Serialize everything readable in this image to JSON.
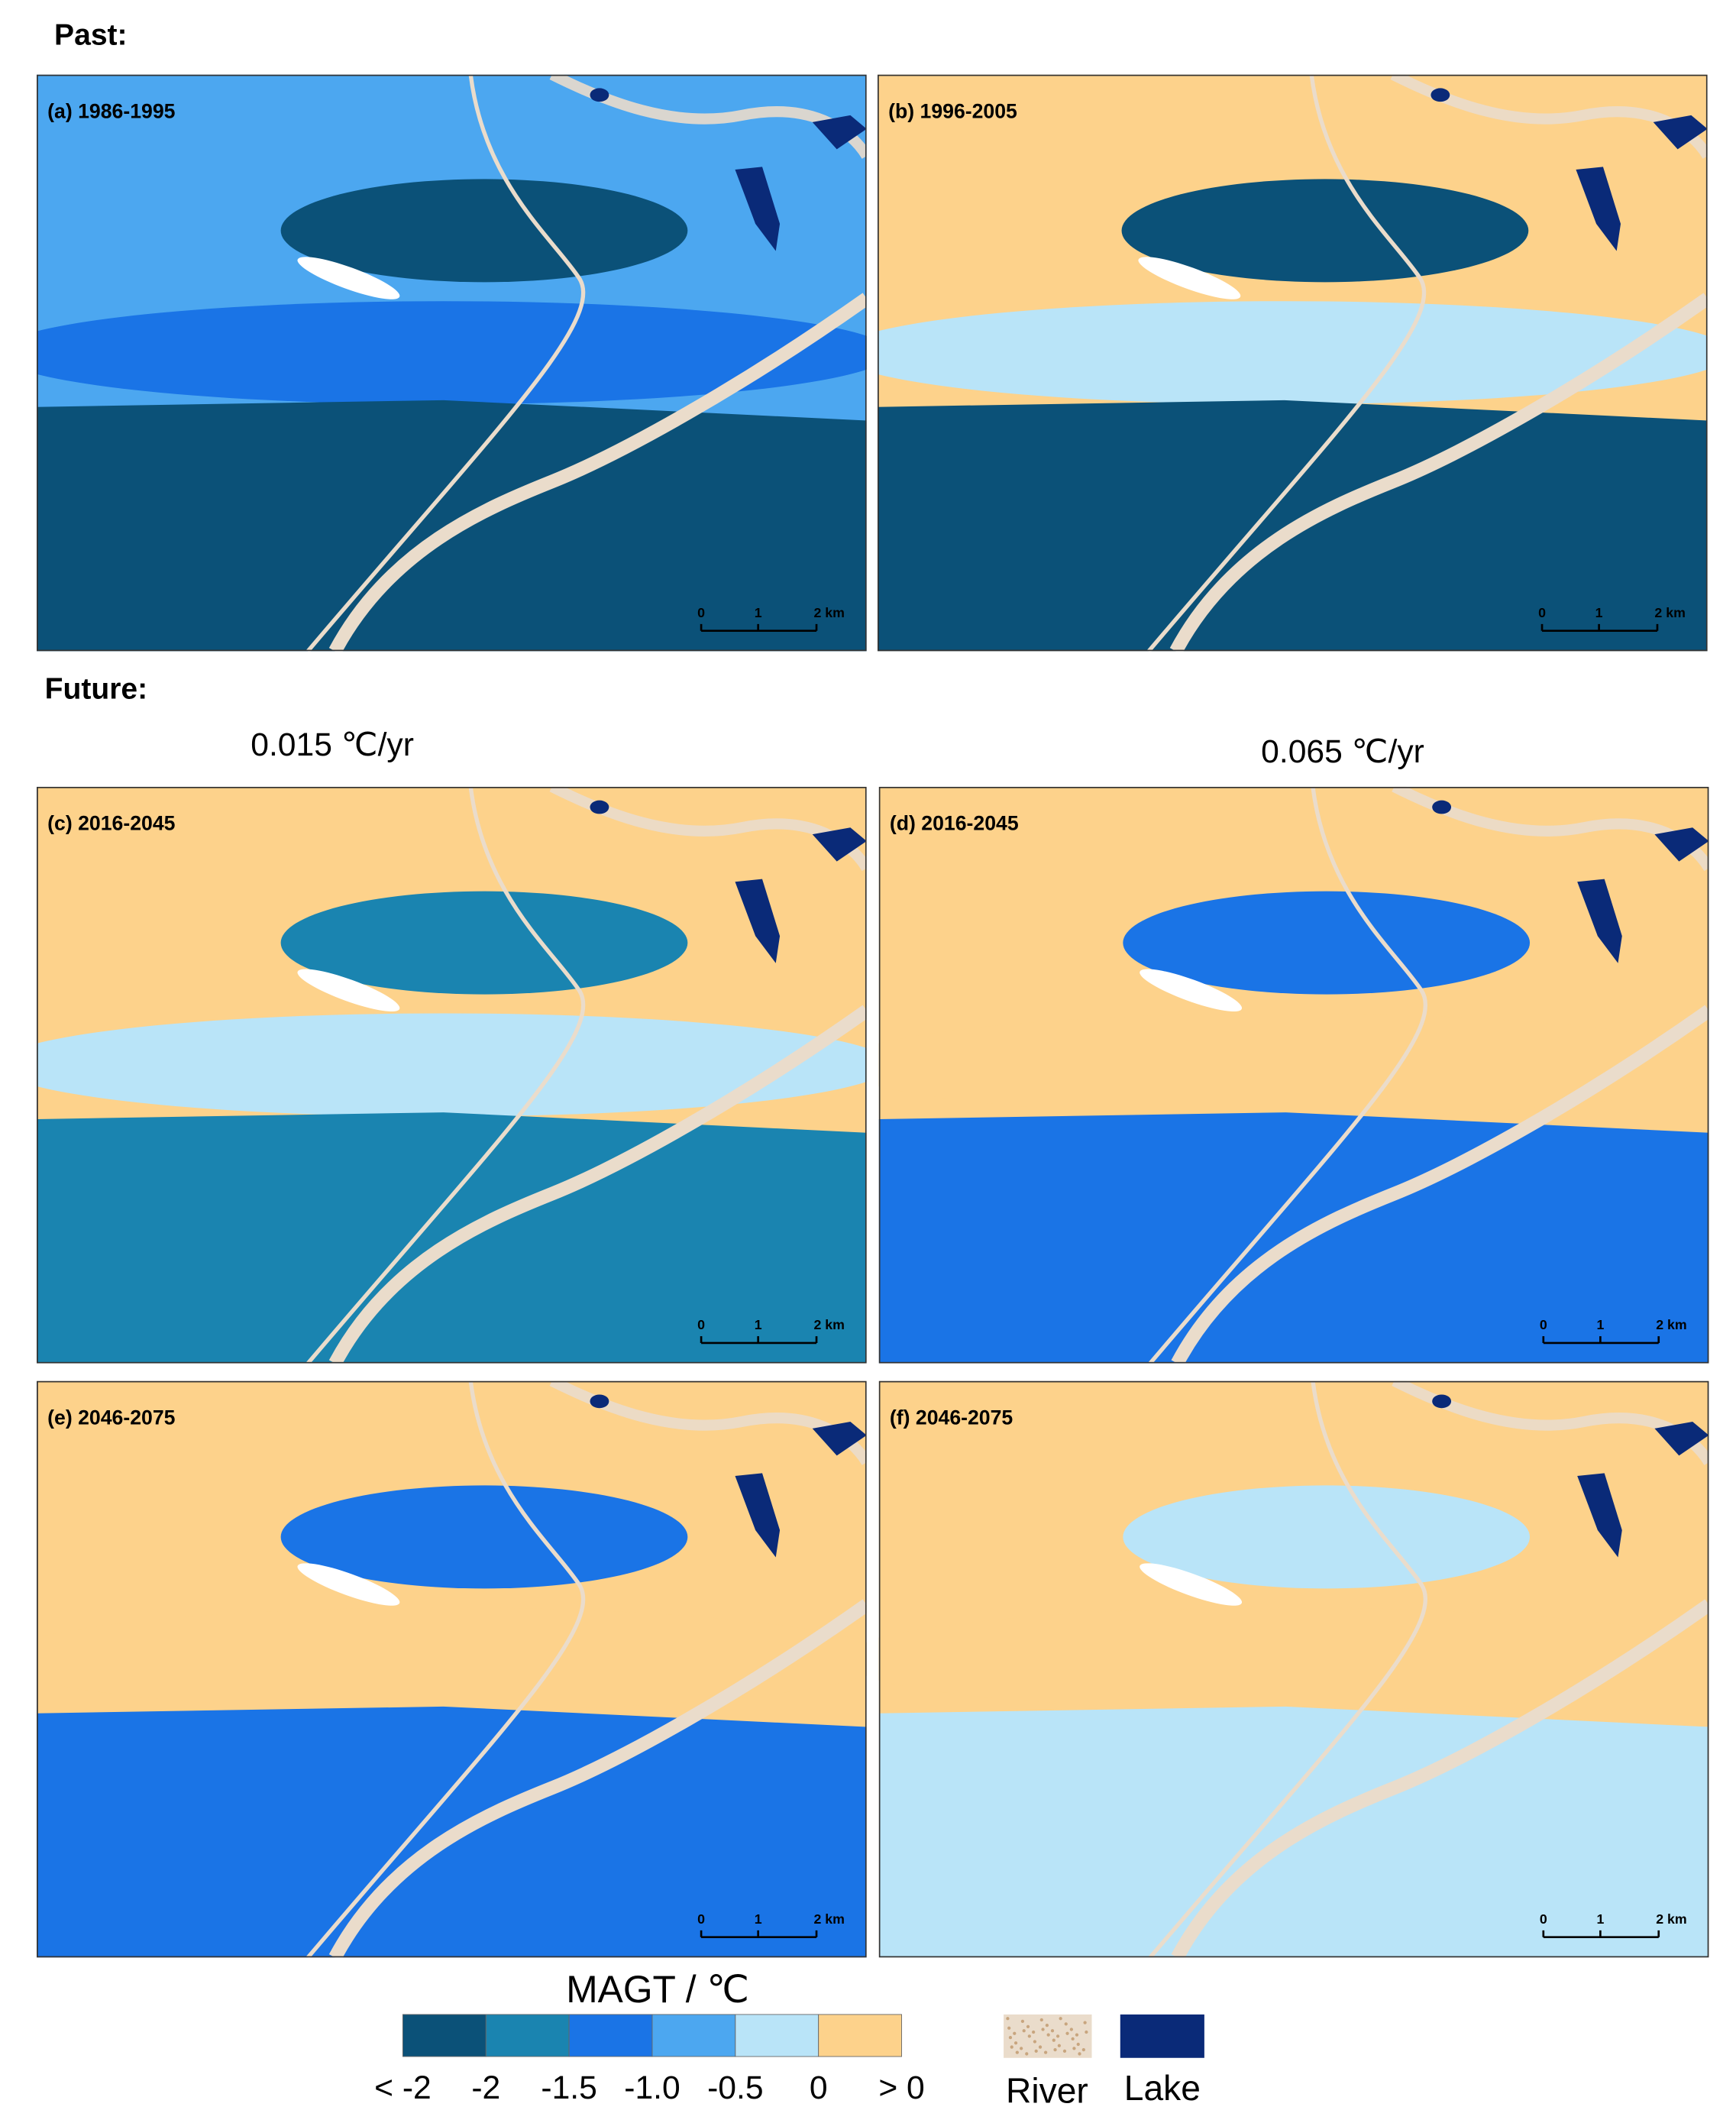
{
  "header": {
    "past": "Past:",
    "future": "Future:"
  },
  "scenarios": [
    "0.015 ℃/yr",
    "0.065 ℃/yr"
  ],
  "panels": [
    {
      "label": "(a) 1986-1995"
    },
    {
      "label": "(b) 1996-2005"
    },
    {
      "label": "(c) 2016-2045"
    },
    {
      "label": "(d) 2016-2045"
    },
    {
      "label": "(e) 2046-2075"
    },
    {
      "label": "(f) 2046-2075"
    }
  ],
  "scale_bar": [
    "0",
    "1",
    "2 km"
  ],
  "legend": {
    "title": "MAGT / ℃",
    "colors": [
      "#0b5178",
      "#1a84b0",
      "#1a74e6",
      "#4ca7f0",
      "#b9e4f8",
      "#fdd28b"
    ],
    "labels": [
      "< -2",
      "-2",
      "-1.5",
      "-1.0",
      "-0.5",
      "0",
      "> 0"
    ],
    "river": {
      "label": "River",
      "color": "#eadccb"
    },
    "lake": {
      "label": "Lake",
      "color": "#0a2a78"
    }
  }
}
